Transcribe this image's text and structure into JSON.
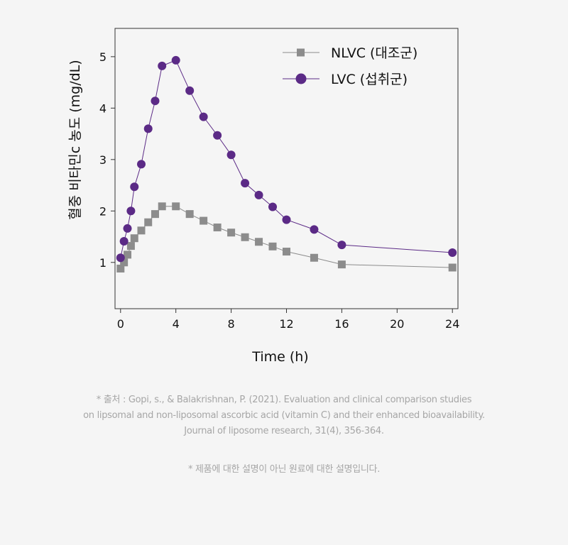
{
  "chart_data": {
    "type": "line",
    "xlabel": "Time (h)",
    "ylabel": "혈중 비타민c 농도 (mg/dL)",
    "xlim": [
      -0.4,
      24.4
    ],
    "ylim": [
      0.1,
      5.55
    ],
    "xticks": [
      0,
      4,
      8,
      12,
      16,
      20,
      24
    ],
    "yticks": [
      1,
      2,
      3,
      4,
      5
    ],
    "grid": false,
    "legend_position": "top-right",
    "series": [
      {
        "name": "NLVC (대조군)",
        "color": "#8c8c8c",
        "marker": "square",
        "x": [
          0,
          0.25,
          0.5,
          0.75,
          1,
          1.5,
          2,
          2.5,
          3,
          4,
          5,
          6,
          7,
          8,
          9,
          10,
          11,
          12,
          14,
          16,
          24
        ],
        "y": [
          0.88,
          1.0,
          1.15,
          1.32,
          1.47,
          1.62,
          1.78,
          1.94,
          2.09,
          2.09,
          1.94,
          1.81,
          1.68,
          1.58,
          1.49,
          1.4,
          1.31,
          1.21,
          1.09,
          0.96,
          0.9
        ]
      },
      {
        "name": "LVC (섭취군)",
        "color": "#5b2a86",
        "marker": "circle",
        "x": [
          0,
          0.25,
          0.5,
          0.75,
          1,
          1.5,
          2,
          2.5,
          3,
          4,
          5,
          6,
          7,
          8,
          9,
          10,
          11,
          12,
          14,
          16,
          24
        ],
        "y": [
          1.09,
          1.41,
          1.66,
          2.0,
          2.47,
          2.91,
          3.6,
          4.14,
          4.82,
          4.93,
          4.34,
          3.83,
          3.47,
          3.09,
          2.54,
          2.31,
          2.08,
          1.83,
          1.64,
          1.34,
          1.19
        ]
      }
    ]
  },
  "footnote": {
    "source_line1": "* 출처 : Gopi, s., & Balakrishnan, P. (2021). Evaluation and clinical comparison studies",
    "source_line2": "on lipsomal and non-liposomal ascorbic acid (vitamin C) and their enhanced bioavailability.",
    "source_line3": "Journal of liposome research, 31(4), 356-364.",
    "disclaimer": "* 제품에 대한 설명이 아닌 원료에 대한 설명입니다."
  }
}
